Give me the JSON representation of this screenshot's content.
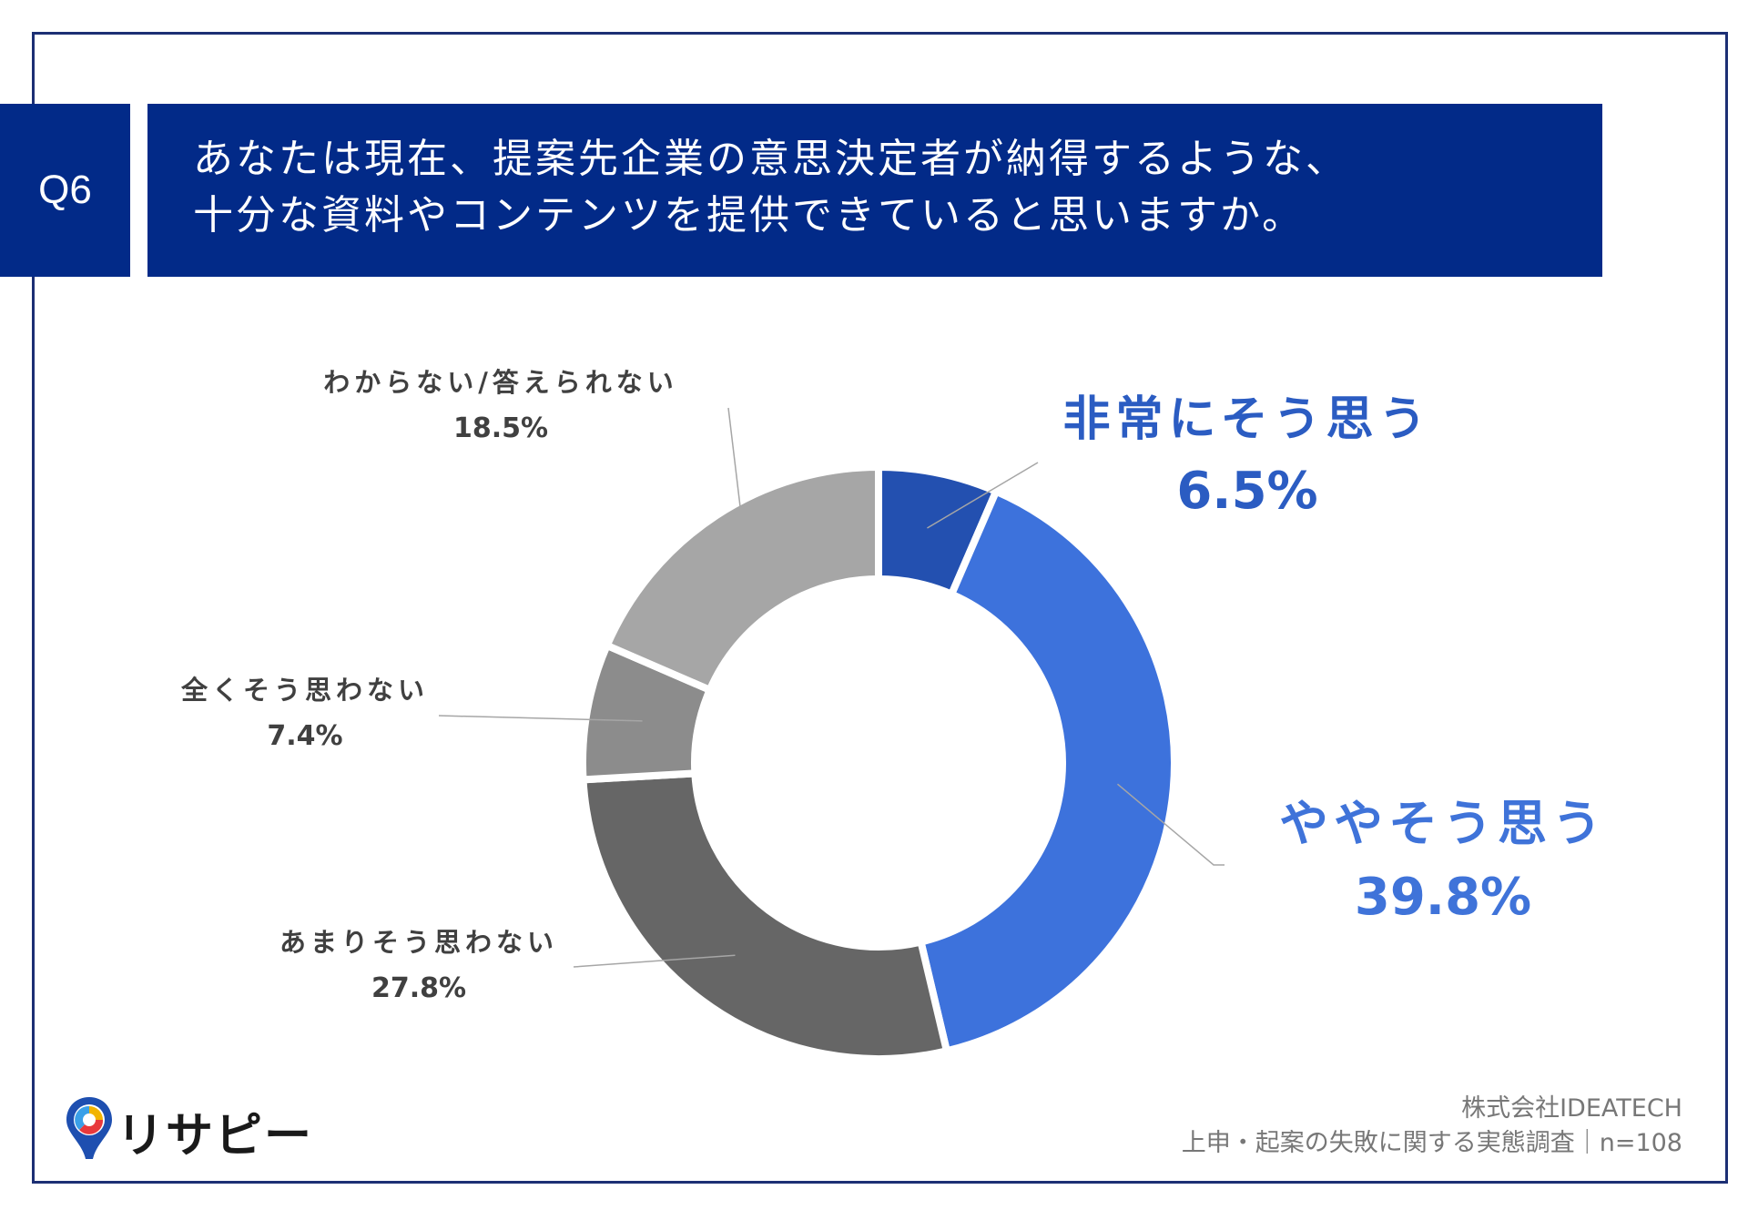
{
  "question": {
    "badge": "Q6",
    "line1": "あなたは現在、提案先企業の意思決定者が納得するような、",
    "line2": "十分な資料やコンテンツを提供できていると思いますか。"
  },
  "chart_data": {
    "type": "pie",
    "title": "",
    "categories": [
      "非常にそう思う",
      "ややそう思う",
      "あまりそう思わない",
      "全くそう思わない",
      "わからない/答えられない"
    ],
    "values": [
      6.5,
      39.8,
      27.8,
      7.4,
      18.5
    ],
    "value_labels": [
      "6.5%",
      "39.8%",
      "27.8%",
      "7.4%",
      "18.5%"
    ],
    "colors": [
      "#2350b0",
      "#3d72dc",
      "#666666",
      "#8c8c8c",
      "#a6a6a6"
    ],
    "donut": true
  },
  "source": {
    "company": "株式会社IDEATECH",
    "survey": "上申・起案の失敗に関する実態調査｜n=108"
  },
  "logo": {
    "text": "リサピー"
  }
}
